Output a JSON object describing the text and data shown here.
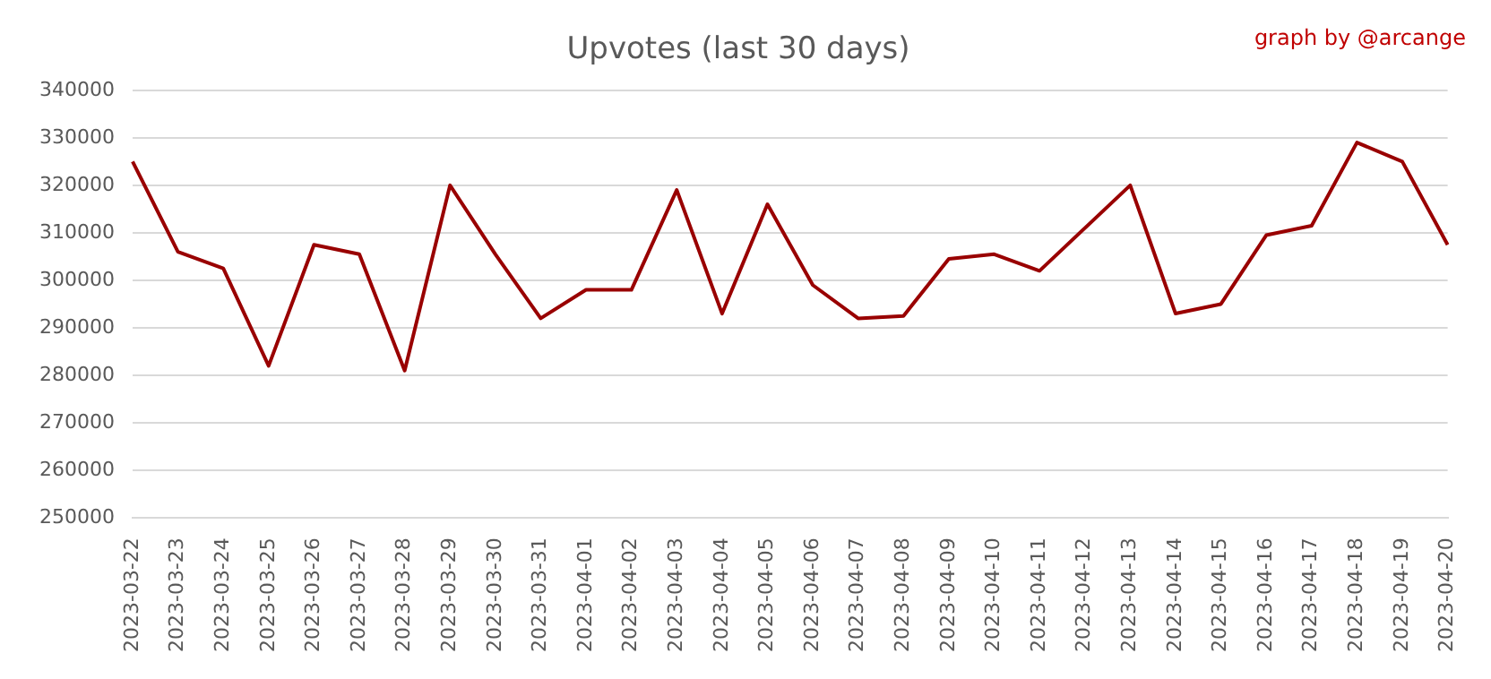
{
  "chart_data": {
    "type": "line",
    "title": "Upvotes (last 30 days)",
    "annotations": [
      "graph by @arcange"
    ],
    "categories": [
      "2023-03-22",
      "2023-03-23",
      "2023-03-24",
      "2023-03-25",
      "2023-03-26",
      "2023-03-27",
      "2023-03-28",
      "2023-03-29",
      "2023-03-30",
      "2023-03-31",
      "2023-04-01",
      "2023-04-02",
      "2023-04-03",
      "2023-04-04",
      "2023-04-05",
      "2023-04-06",
      "2023-04-07",
      "2023-04-08",
      "2023-04-09",
      "2023-04-10",
      "2023-04-11",
      "2023-04-12",
      "2023-04-13",
      "2023-04-14",
      "2023-04-15",
      "2023-04-16",
      "2023-04-17",
      "2023-04-18",
      "2023-04-19",
      "2023-04-20"
    ],
    "values": [
      325000,
      306000,
      302500,
      282000,
      307500,
      305500,
      281000,
      320000,
      305500,
      292000,
      298000,
      298000,
      319000,
      293000,
      316000,
      299000,
      292000,
      292500,
      304500,
      305500,
      302000,
      311000,
      320000,
      293000,
      295000,
      309500,
      311500,
      329000,
      325000,
      307500
    ],
    "color": "#990000",
    "ylim": [
      250000,
      340000
    ],
    "yticks": [
      250000,
      260000,
      270000,
      280000,
      290000,
      300000,
      310000,
      320000,
      330000,
      340000
    ],
    "grid": "y",
    "legend": false,
    "marker": "none",
    "line_style": "solid"
  }
}
